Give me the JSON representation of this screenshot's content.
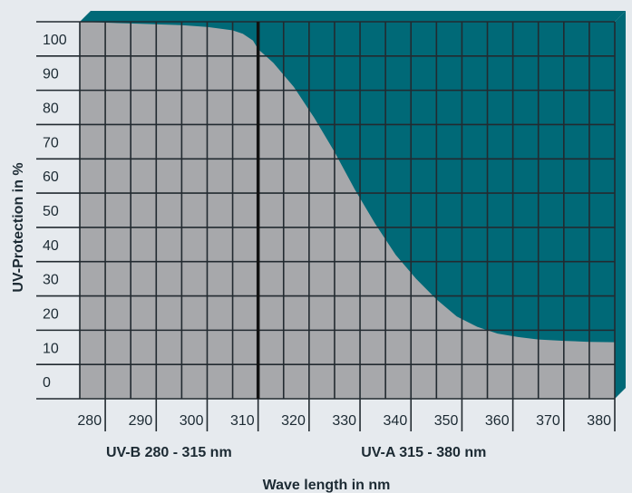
{
  "chart_data": {
    "type": "area",
    "xlabel": "Wave length in nm",
    "ylabel": "UV-Protection in %",
    "xlim": [
      280,
      385
    ],
    "ylim": [
      -5,
      105
    ],
    "x_ticks": [
      "280",
      "290",
      "300",
      "310",
      "320",
      "330",
      "340",
      "350",
      "360",
      "370",
      "380"
    ],
    "y_ticks": [
      "100",
      "90",
      "80",
      "70",
      "60",
      "50",
      "40",
      "30",
      "20",
      "10",
      "0"
    ],
    "bands": [
      {
        "label": "UV-B 280 - 315 nm",
        "from": 280,
        "to": 315
      },
      {
        "label": "UV-A 315 - 380 nm",
        "from": 315,
        "to": 380
      }
    ],
    "divider_x": 315,
    "series": [
      {
        "x": [
          280,
          290,
          300,
          305,
          310,
          312,
          314,
          315,
          318,
          322,
          326,
          330,
          334,
          338,
          342,
          346,
          350,
          354,
          358,
          362,
          366,
          370,
          375,
          380,
          385
        ],
        "y": [
          105,
          104.5,
          104,
          103.5,
          102.5,
          101.5,
          99.5,
          97,
          93,
          86,
          77,
          67,
          56,
          46,
          37,
          30,
          24,
          19,
          16,
          14,
          13,
          12.3,
          11.9,
          11.6,
          11.5
        ]
      }
    ],
    "colors": {
      "area": "#a7a8ab",
      "background_fill": "#006977",
      "grid": "#222a30",
      "text": "#1c2a33"
    }
  }
}
